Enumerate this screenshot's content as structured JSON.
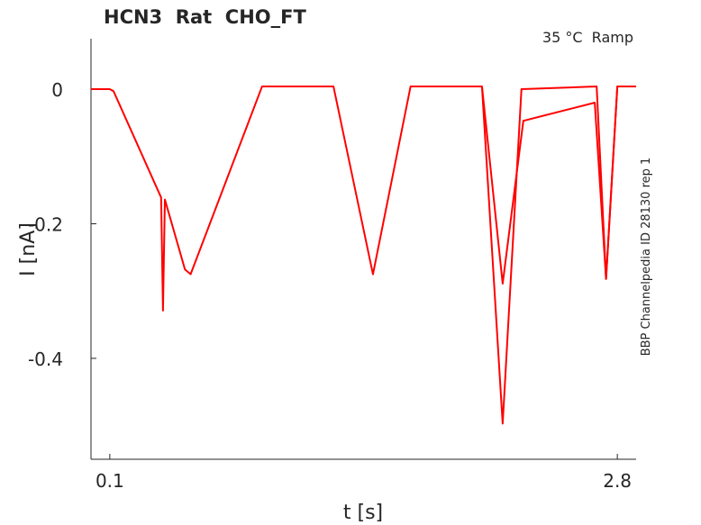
{
  "chart_data": {
    "type": "line",
    "title": "HCN3  Rat  CHO_FT",
    "annotation": "35 °C  Ramp",
    "side_note": "BBP Channelpedia ID 28130 rep 1",
    "xlabel": "t [s]",
    "ylabel": "I [nA]",
    "xlim": [
      0,
      2.9
    ],
    "ylim": [
      -0.55,
      0.075
    ],
    "xticks": [
      0.1,
      2.8
    ],
    "yticks": [
      0,
      -0.2,
      -0.4
    ],
    "series": [
      {
        "color": "#ff0000",
        "x": [
          0,
          0.1,
          0.12,
          0.373,
          0.383,
          0.393,
          0.5,
          0.53,
          0.91,
          1.29,
          1.5,
          1.7,
          2.08,
          2.19,
          2.29,
          2.69,
          2.74,
          2.8,
          2.9
        ],
        "values": [
          0,
          0,
          -0.003,
          -0.161,
          -0.329,
          -0.164,
          -0.268,
          -0.275,
          0.004,
          0.004,
          -0.275,
          0.004,
          0.004,
          -0.497,
          0,
          0.004,
          -0.282,
          0.004,
          0.004
        ]
      },
      {
        "color": "#ff0000",
        "x": [
          2.08,
          2.19,
          2.3,
          2.68,
          2.74,
          2.8,
          2.9
        ],
        "values": [
          0.004,
          -0.289,
          -0.047,
          -0.02,
          -0.282,
          0.004,
          0.004
        ]
      }
    ]
  }
}
